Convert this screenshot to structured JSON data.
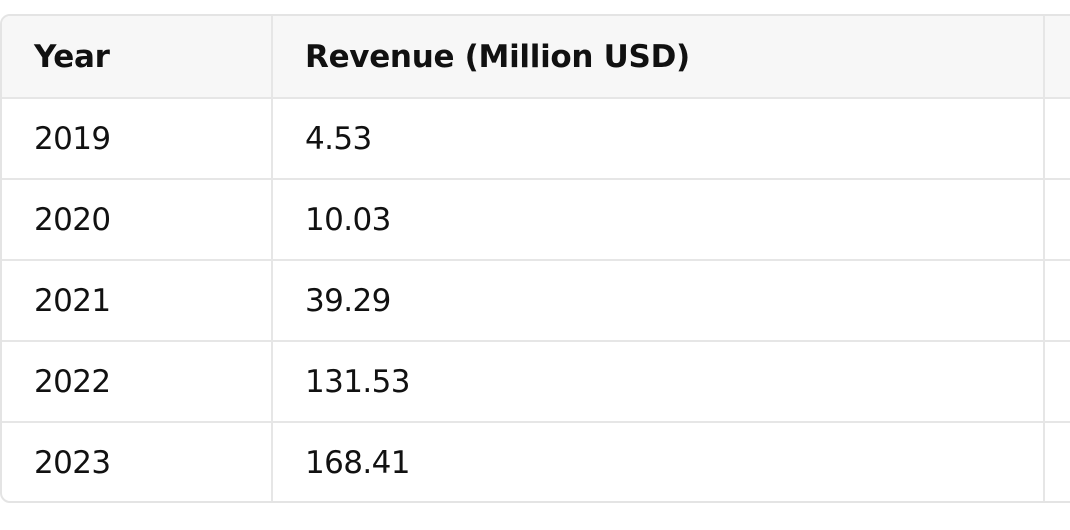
{
  "chart_data": {
    "type": "table",
    "columns": [
      "Year",
      "Revenue (Million USD)",
      ""
    ],
    "rows": [
      [
        "2019",
        "4.53",
        ""
      ],
      [
        "2020",
        "10.03",
        ""
      ],
      [
        "2021",
        "39.29",
        ""
      ],
      [
        "2022",
        "131.53",
        ""
      ],
      [
        "2023",
        "168.41",
        ""
      ]
    ]
  }
}
